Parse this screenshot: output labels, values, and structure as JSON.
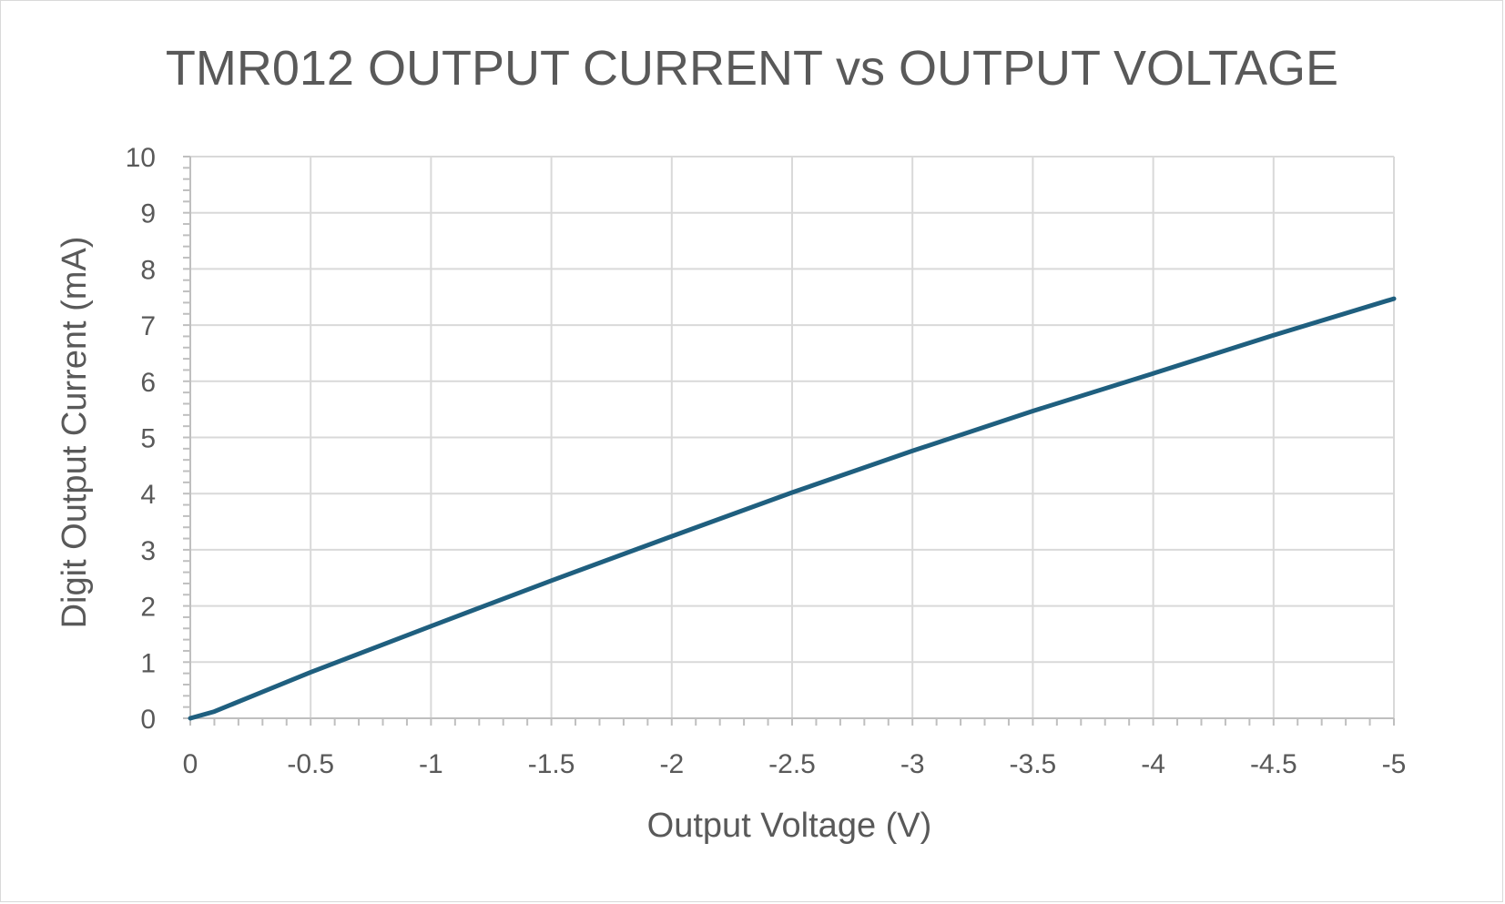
{
  "chart_data": {
    "type": "line",
    "title": "TMR012 OUTPUT CURRENT vs OUTPUT VOLTAGE",
    "xlabel": "Output Voltage (V)",
    "ylabel": "Digit Output Current (mA)",
    "xlim": [
      0,
      -5
    ],
    "ylim": [
      0,
      10
    ],
    "x_ticks": [
      "0",
      "-0.5",
      "-1",
      "-1.5",
      "-2",
      "-2.5",
      "-3",
      "-3.5",
      "-4",
      "-4.5",
      "-5"
    ],
    "y_ticks": [
      "0",
      "1",
      "2",
      "3",
      "4",
      "5",
      "6",
      "7",
      "8",
      "9",
      "10"
    ],
    "x_reversed": true,
    "grid": true,
    "legend": "none",
    "series": [
      {
        "color": "#1f5f7f",
        "x": [
          0,
          -0.1,
          -0.5,
          -1,
          -1.5,
          -2,
          -2.5,
          -3,
          -3.5,
          -4,
          -4.5,
          -5
        ],
        "y": [
          0,
          0.12,
          0.82,
          1.64,
          2.45,
          3.24,
          4.02,
          4.76,
          5.47,
          6.14,
          6.82,
          7.47
        ]
      }
    ]
  },
  "colors": {
    "grid": "#d9d9d9",
    "axis": "#bfbfbf",
    "text": "#595959",
    "line": "#1f5f7f"
  }
}
